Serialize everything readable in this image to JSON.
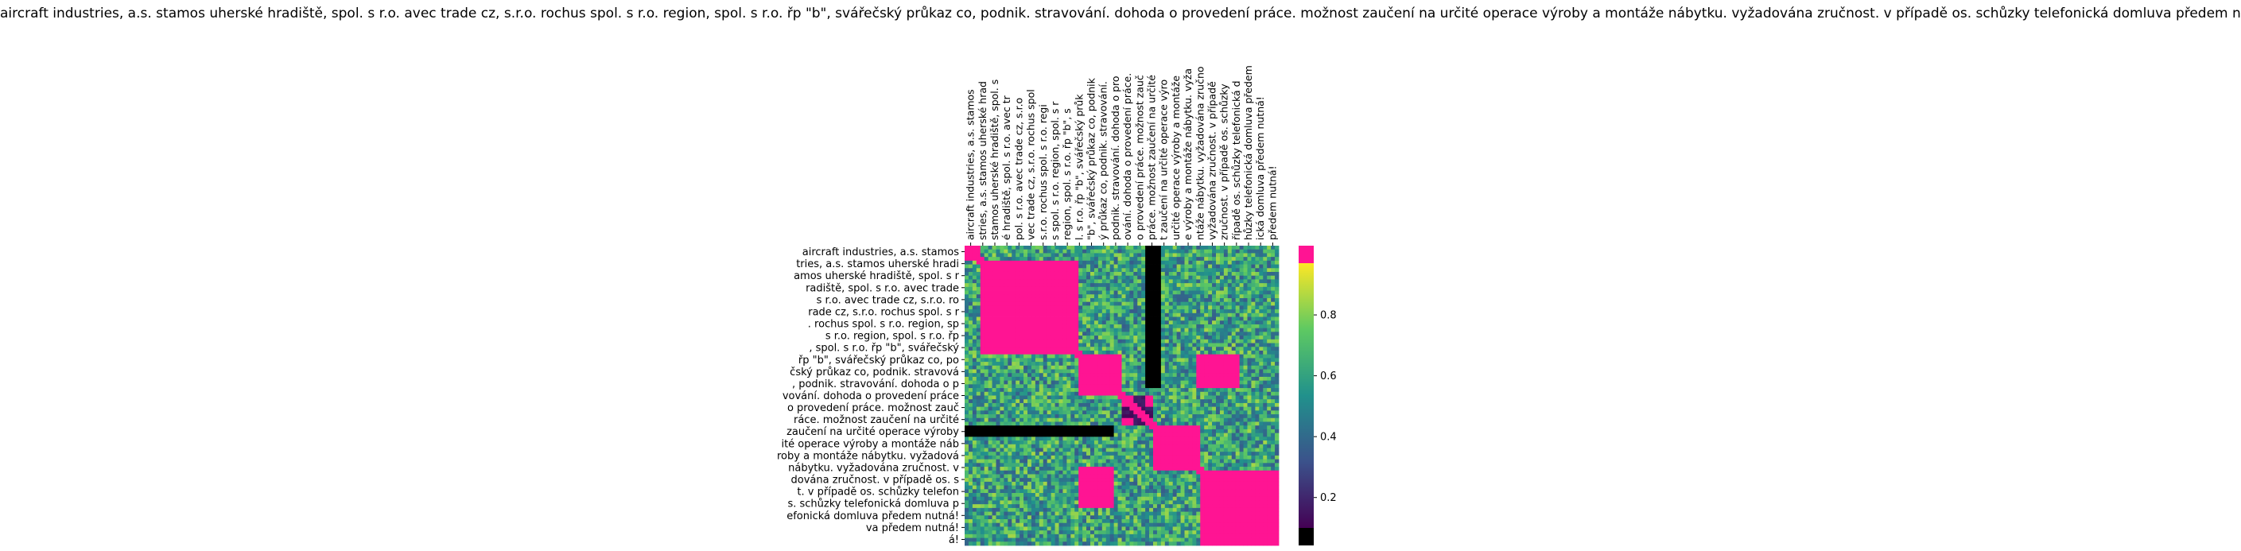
{
  "chart_data": {
    "type": "heatmap",
    "title": "aircraft industries, a.s. stamos uherské hradiště, spol. s r.o. avec trade cz, s.r.o. rochus spol. s r.o. region, spol. s r.o. řp \"b\", svářečský průkaz co, podnik. stravování. dohoda o provedení práce. možnost zaučení na určité operace výroby a montáže nábytku. vyžadována zručnost. v případě os. schůzky telefonická domluva předem nutná!",
    "xlabel": "",
    "ylabel": "",
    "x_tick_labels": [
      "aircraft industries, a.s. stamos",
      "stries, a.s. stamos uherské hrad",
      "stamos uherské hradiště, spol. s",
      "é hradiště, spol. s r.o. avec tr",
      "pol. s r.o. avec trade cz, s.r.o",
      "vec trade cz, s.r.o. rochus spol",
      "s.r.o. rochus spol. s r.o. regi",
      "s spol. s r.o. region, spol. s r",
      " region, spol. s r.o. řp \"b\", s",
      "l. s r.o. řp \"b\", svářečský průk",
      "\"b\", svářečský průkaz co, podnik",
      "ý průkaz co, podnik. stravování.",
      "podnik. stravování. dohoda o pro",
      "ování. dohoda o provedení práce.",
      " o provedení práce. možnost zauč",
      "práce. možnost zaučení na určité",
      "t zaučení na určité operace výro",
      "určité operace výroby a montáže",
      "e výroby a montáže nábytku. vyža",
      "ntáže nábytku. vyžadována zručno",
      " vyžadována zručnost. v případě",
      "zručnost. v případě os. schůzky",
      "řípadě os. schůzky telefonická d",
      "hůzky telefonická domluva předem",
      "ická domluva předem nutná!",
      " předem nutná!"
    ],
    "y_tick_labels": [
      "aircraft industries, a.s. stamos",
      "tries, a.s. stamos uherské hradi",
      "amos uherské hradiště, spol. s r",
      "radiště, spol. s r.o. avec trade",
      " s r.o. avec trade cz, s.r.o. ro",
      "rade cz, s.r.o. rochus spol. s r",
      ". rochus spol. s r.o. region, sp",
      " s r.o. region, spol. s r.o. řp ",
      ", spol. s r.o. řp \"b\", svářečský",
      "řp \"b\", svářečský průkaz co, po",
      "čský průkaz co, podnik. stravová",
      ", podnik. stravování. dohoda o p",
      "vování. dohoda o provedení práce",
      "o provedení práce. možnost zauč",
      "ráce. možnost zaučení na určité ",
      "zaučení na určité operace výroby",
      "ité operace výroby a montáže náb",
      "roby a montáže nábytku. vyžadová",
      "nábytku. vyžadována zručnost. v ",
      "dována zručnost. v případě os. s",
      "t. v případě os. schůzky telefon",
      "s. schůzky telefonická domluva p",
      "efonická domluva předem nutná!",
      "va předem nutná!",
      "á!"
    ],
    "colorbar": {
      "ticks": [
        0.2,
        0.4,
        0.6,
        0.8
      ],
      "range": [
        0.1,
        0.97
      ],
      "over_color": "#ff1493",
      "under_color": "#000000",
      "colormap": [
        "#440154",
        "#3b528b",
        "#21918c",
        "#5ec962",
        "#fde725"
      ]
    },
    "blocks": [
      {
        "rows": [
          0,
          0.05
        ],
        "cols": [
          0,
          0.05
        ],
        "value": 1.0
      },
      {
        "rows": [
          0.05,
          0.36
        ],
        "cols": [
          0.05,
          0.36
        ],
        "value": 1.0
      },
      {
        "rows": [
          0.36,
          0.5
        ],
        "cols": [
          0.36,
          0.5
        ],
        "value": 1.0
      },
      {
        "rows": [
          0.5,
          0.6
        ],
        "cols": [
          0.5,
          0.6
        ],
        "value": 1.0
      },
      {
        "rows": [
          0.6,
          0.75
        ],
        "cols": [
          0.6,
          0.75
        ],
        "value": 1.0
      },
      {
        "rows": [
          0.75,
          1.0
        ],
        "cols": [
          0.75,
          1.0
        ],
        "value": 1.0
      },
      {
        "rows": [
          0.36,
          0.47
        ],
        "cols": [
          0.74,
          0.88
        ],
        "value": 1.0
      },
      {
        "rows": [
          0.74,
          0.88
        ],
        "cols": [
          0.36,
          0.47
        ],
        "value": 1.0
      },
      {
        "rows": [
          0.6,
          0.64
        ],
        "cols": [
          0.0,
          0.48
        ],
        "value": 0.05
      },
      {
        "rows": [
          0.0,
          0.48
        ],
        "cols": [
          0.58,
          0.62
        ],
        "value": 0.05
      },
      {
        "rows": [
          0.54,
          0.58
        ],
        "cols": [
          0.5,
          0.6
        ],
        "value": 0.15
      },
      {
        "rows": [
          0.5,
          0.6
        ],
        "cols": [
          0.54,
          0.58
        ],
        "value": 0.15
      }
    ],
    "background_value": 0.6
  }
}
